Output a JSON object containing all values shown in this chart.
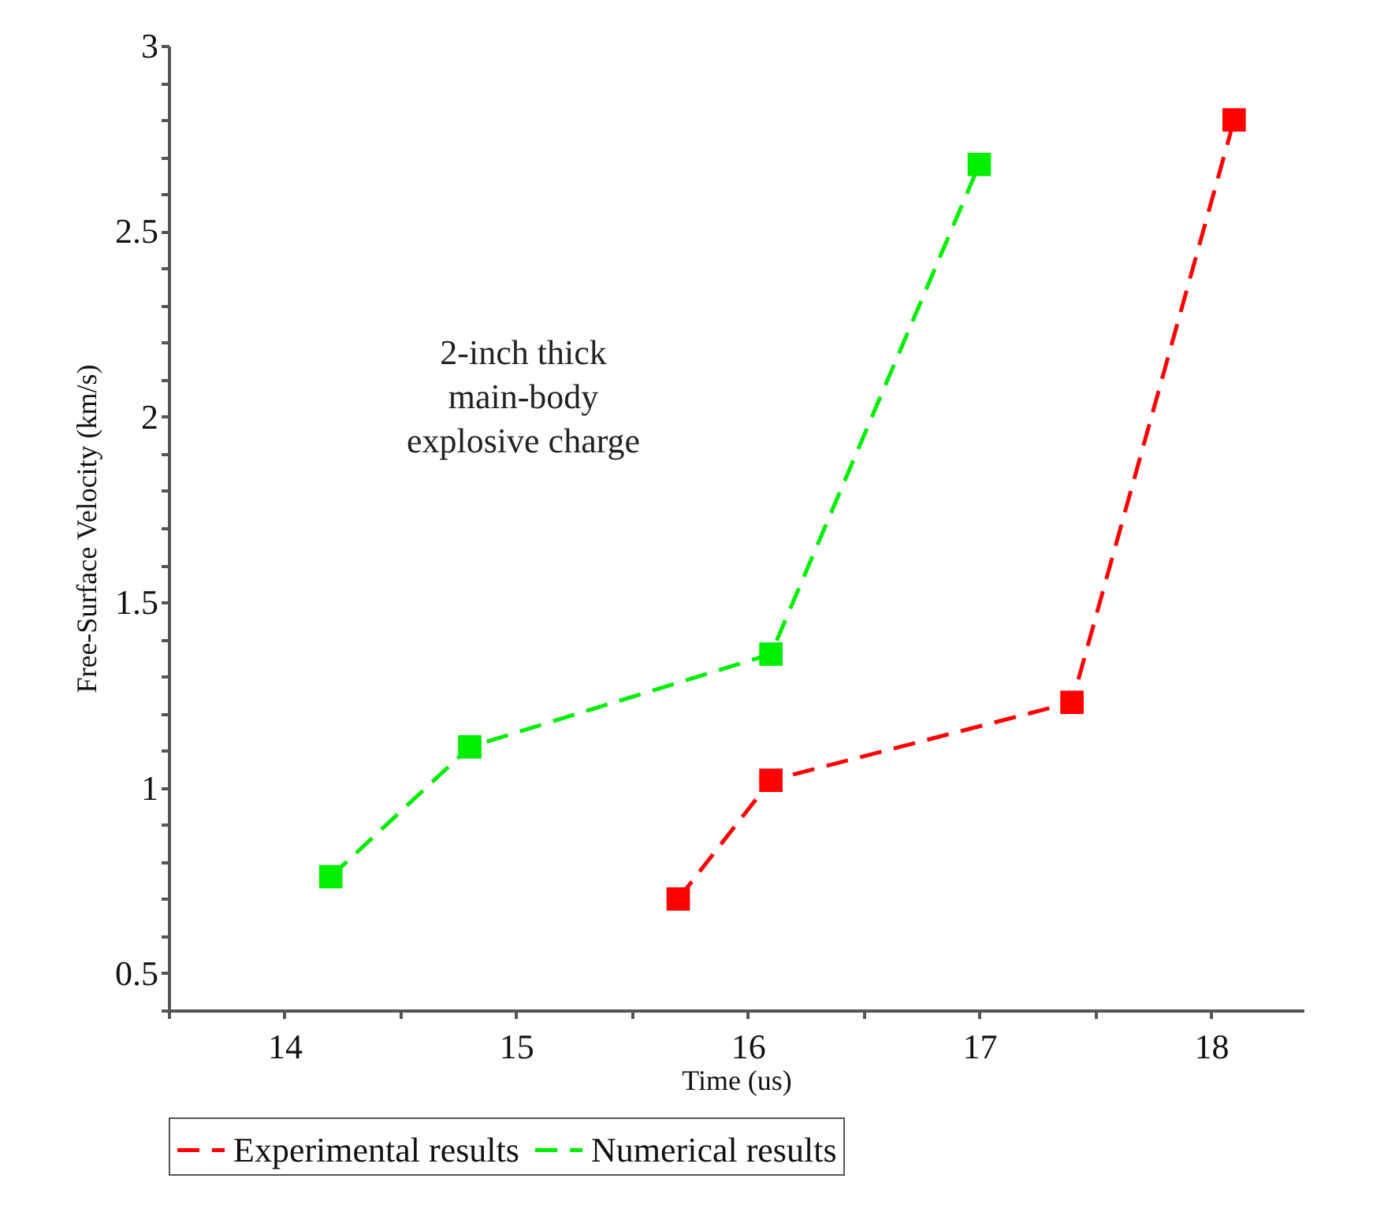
{
  "chart_data": {
    "type": "line",
    "xlabel": "Time (us)",
    "ylabel": "Free-Surface Velocity (km/s)",
    "annotations": [
      "2-inch thick\nmain-body\nexplosive charge"
    ],
    "series": [
      {
        "name": "Experimental results",
        "color": "#ff0000",
        "x": [
          15.7,
          16.1,
          17.4,
          18.1
        ],
        "values": [
          0.7,
          1.02,
          1.23,
          2.8
        ]
      },
      {
        "name": "Numerical results",
        "color": "#00ee00",
        "x": [
          14.2,
          14.8,
          16.1,
          17.0
        ],
        "values": [
          0.76,
          1.11,
          1.36,
          2.68
        ]
      }
    ],
    "xlim": [
      13.5,
      18.4
    ],
    "ylim": [
      0.4,
      3.0
    ],
    "xticks": [
      {
        "value": 13.5,
        "label": null
      },
      14,
      {
        "value": 14.5,
        "label": null
      },
      15,
      {
        "value": 15.5,
        "label": null
      },
      16,
      {
        "value": 16.5,
        "label": null
      },
      17,
      {
        "value": 17.5,
        "label": null
      },
      18
    ],
    "yticks": [
      {
        "value": 0.4,
        "label": null
      },
      0.5,
      {
        "value": 0.6,
        "label": null
      },
      {
        "value": 0.7,
        "label": null
      },
      {
        "value": 0.8,
        "label": null
      },
      {
        "value": 0.9,
        "label": null
      },
      1,
      {
        "value": 1.1,
        "label": null
      },
      {
        "value": 1.2,
        "label": null
      },
      {
        "value": 1.3,
        "label": null
      },
      {
        "value": 1.4,
        "label": null
      },
      1.5,
      {
        "value": 1.6,
        "label": null
      },
      {
        "value": 1.7,
        "label": null
      },
      {
        "value": 1.8,
        "label": null
      },
      {
        "value": 1.9,
        "label": null
      },
      2,
      {
        "value": 2.1,
        "label": null
      },
      {
        "value": 2.2,
        "label": null
      },
      {
        "value": 2.3,
        "label": null
      },
      {
        "value": 2.4,
        "label": null
      },
      2.5,
      {
        "value": 2.6,
        "label": null
      },
      {
        "value": 2.7,
        "label": null
      },
      {
        "value": 2.8,
        "label": null
      },
      {
        "value": 2.9,
        "label": null
      },
      3
    ],
    "grid": false,
    "legend": "bottom",
    "marker": "square",
    "line_style": "dashed"
  }
}
